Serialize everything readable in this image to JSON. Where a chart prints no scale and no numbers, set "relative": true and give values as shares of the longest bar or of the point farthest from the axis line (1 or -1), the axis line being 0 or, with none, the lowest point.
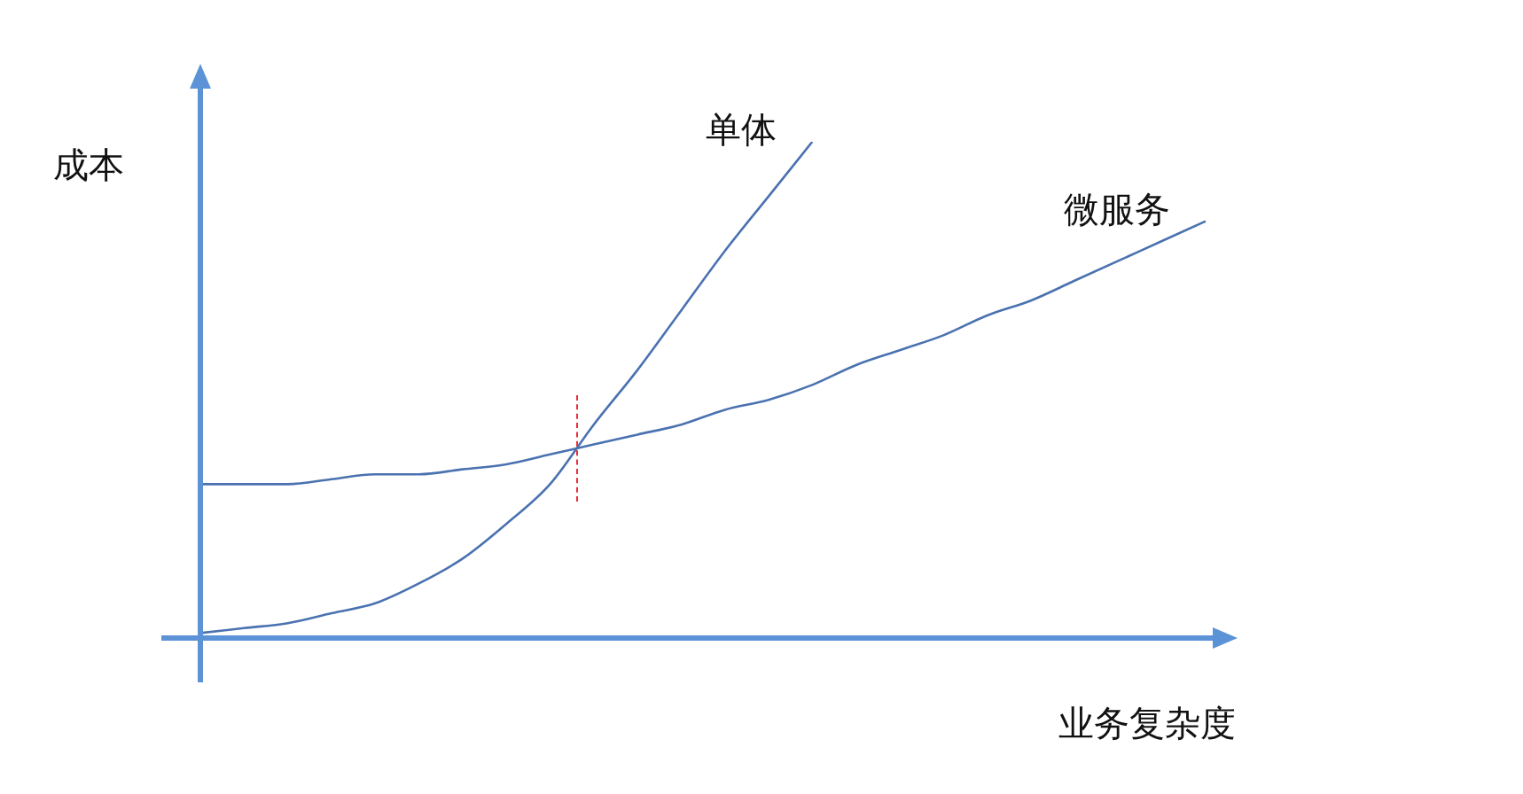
{
  "chart_data": {
    "type": "line",
    "relative": true,
    "ylabel": "成本",
    "xlabel": "业务复杂度",
    "legend": false,
    "marker": "none",
    "line_style": "solid",
    "tick_labels": false,
    "categories": [
      null,
      null,
      null,
      null,
      null,
      null,
      null,
      null,
      null,
      null,
      null,
      null,
      null,
      null,
      null,
      null,
      null,
      null,
      null,
      null,
      null,
      null,
      null,
      null
    ],
    "series": [
      {
        "name": "单体",
        "color": "#4a72b0",
        "values": [
          0.01,
          0.02,
          0.03,
          0.05,
          0.07,
          0.11,
          0.16,
          0.23,
          0.31,
          0.43,
          0.54,
          0.66,
          0.78,
          0.89,
          1,
          null,
          null,
          null,
          null,
          null,
          null,
          null,
          null,
          null
        ]
      },
      {
        "name": "微服务",
        "color": "#4a72b0",
        "values": [
          0.31,
          0.31,
          0.31,
          0.32,
          0.33,
          0.33,
          0.34,
          0.35,
          0.37,
          0.39,
          0.41,
          0.43,
          0.46,
          0.48,
          0.51,
          0.55,
          0.58,
          0.61,
          0.65,
          0.68,
          0.72,
          0.76,
          0.8,
          0.84
        ]
      }
    ]
  }
}
